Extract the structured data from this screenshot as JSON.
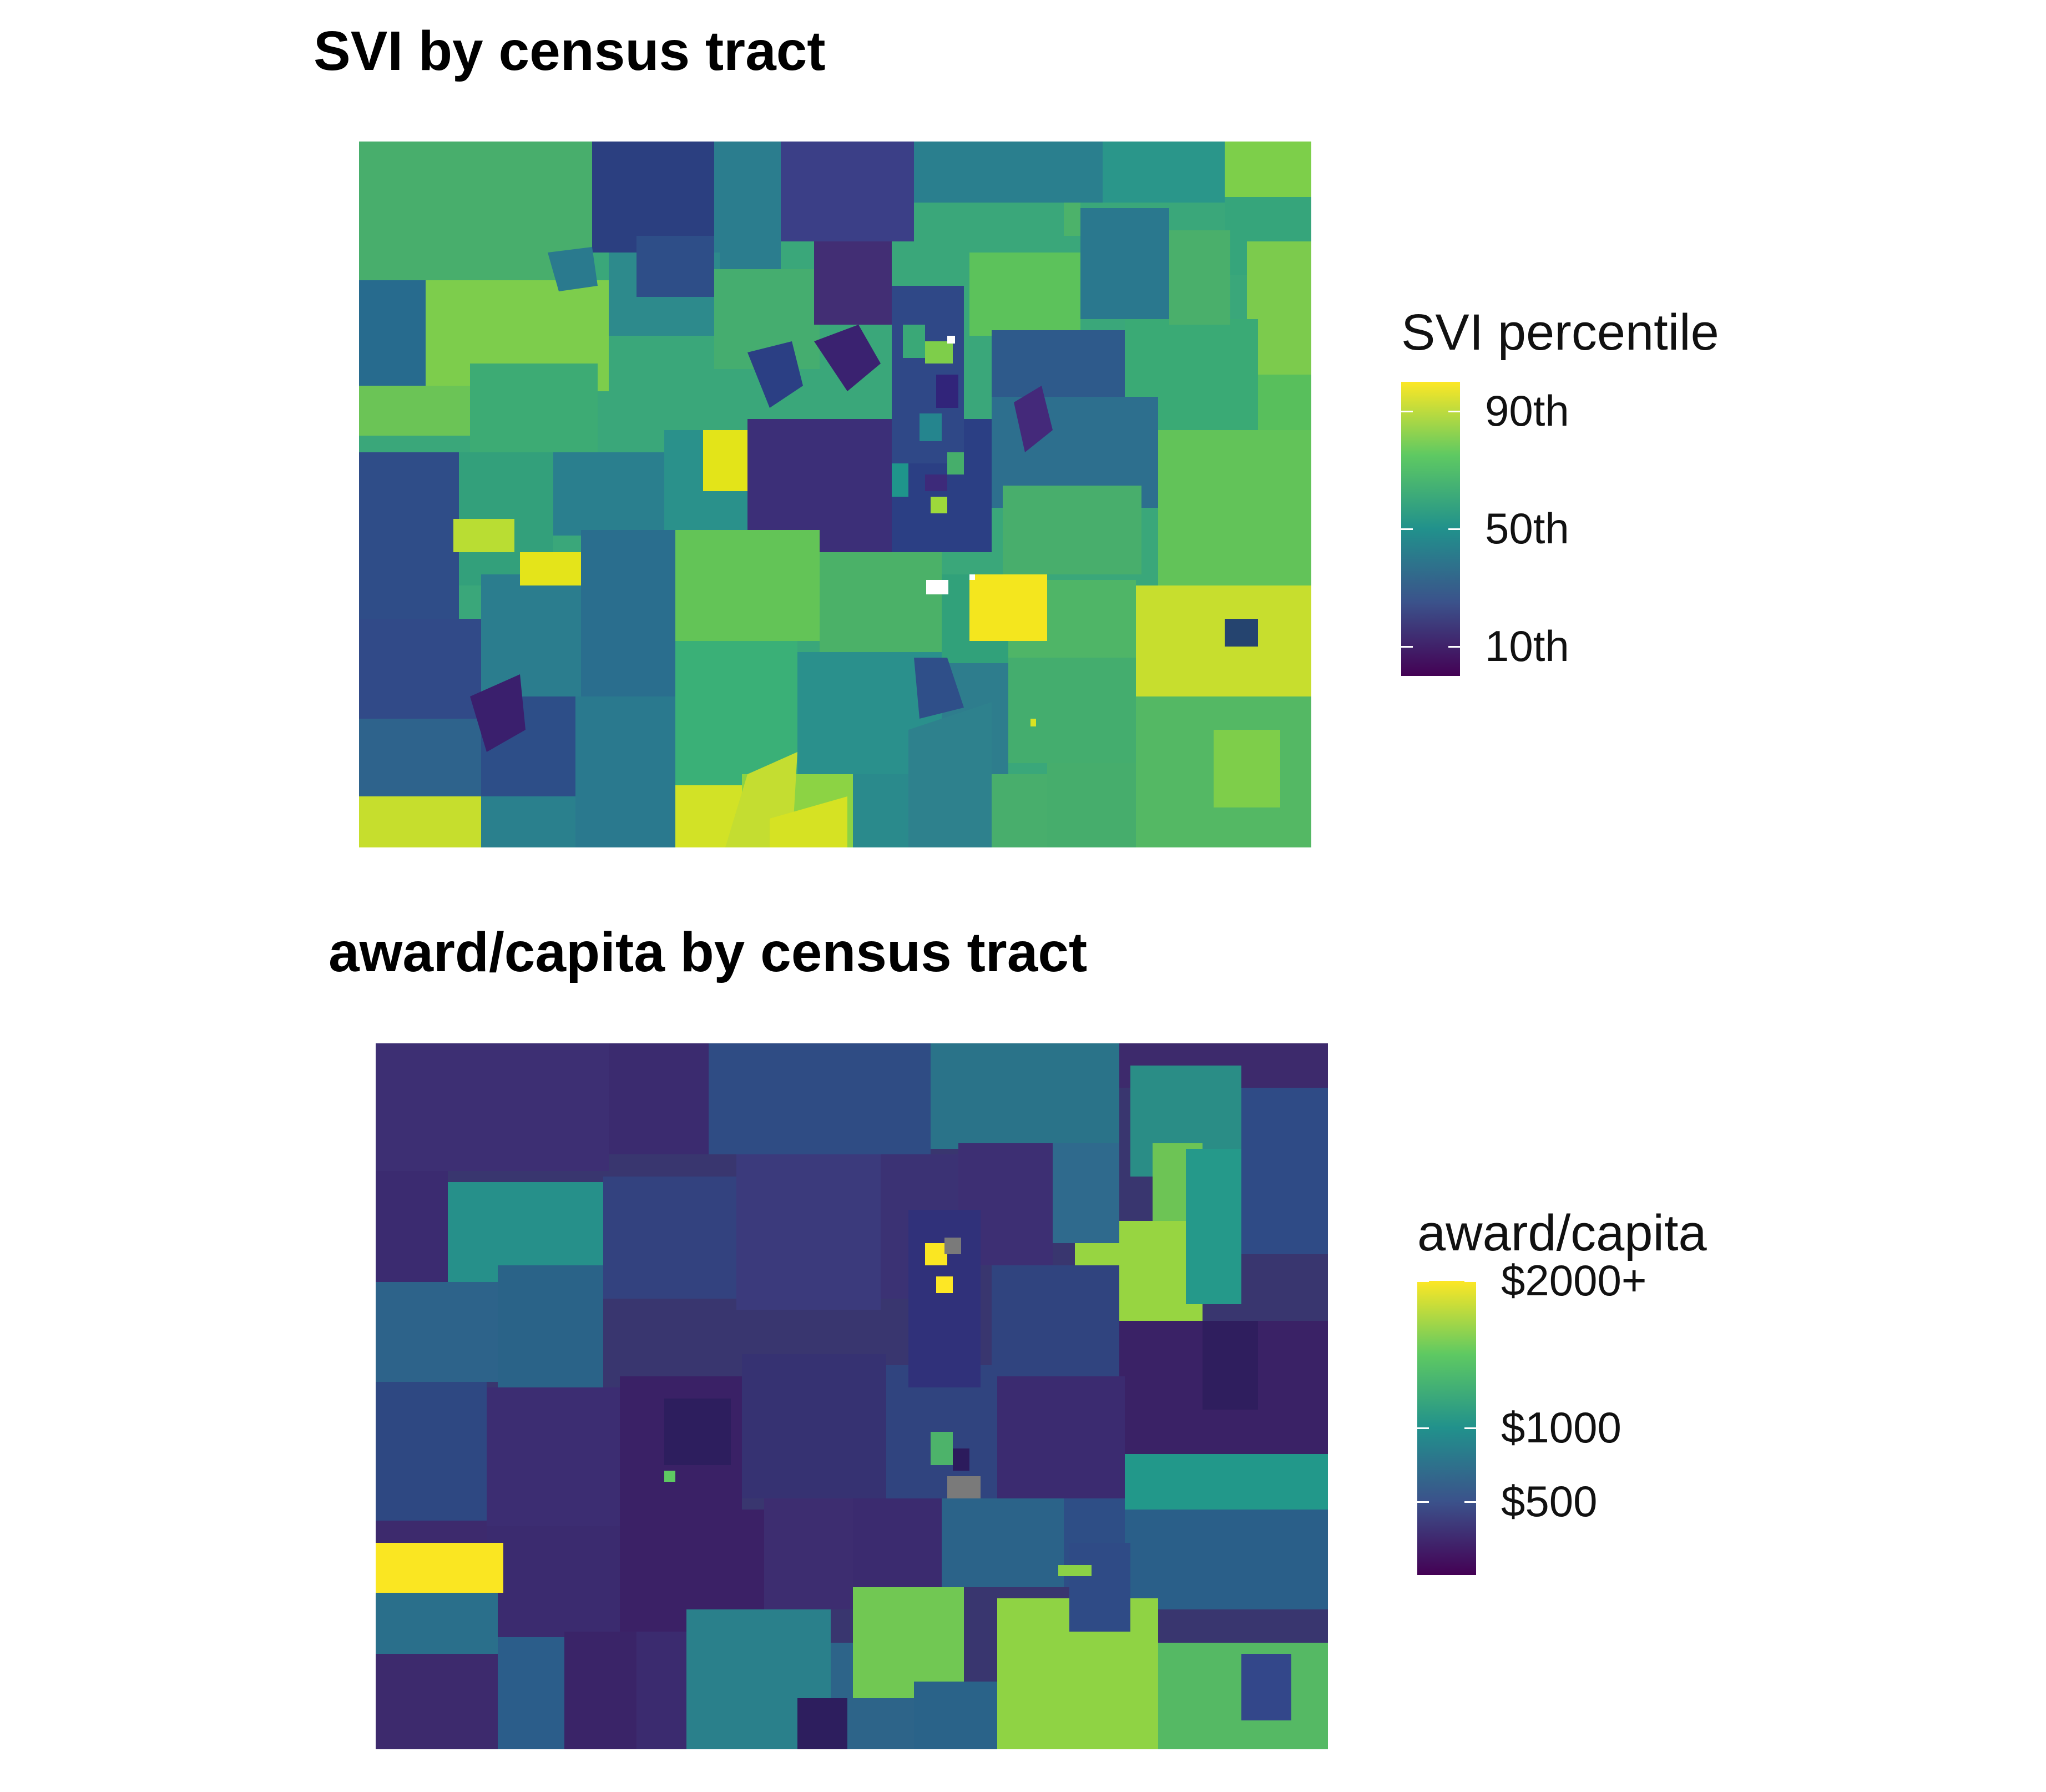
{
  "panels": [
    {
      "title": "SVI by census tract",
      "legend": {
        "title": "SVI percentile",
        "ticks": [
          {
            "label": "90th",
            "value": 90
          },
          {
            "label": "50th",
            "value": 50
          },
          {
            "label": "10th",
            "value": 10
          }
        ],
        "range": [
          0,
          100
        ],
        "colors": [
          "#440154",
          "#3b528b",
          "#21918c",
          "#5ec962",
          "#fde725"
        ]
      }
    },
    {
      "title": "award/capita by census tract",
      "legend": {
        "title": "award/capita",
        "ticks": [
          {
            "label": "$2000+",
            "value": 2000
          },
          {
            "label": "$1000",
            "value": 1000
          },
          {
            "label": "$500",
            "value": 500
          }
        ],
        "range": [
          0,
          2000
        ],
        "colors": [
          "#440154",
          "#3b528b",
          "#21918c",
          "#5ec962",
          "#fde725"
        ]
      }
    }
  ],
  "colors": {
    "viridis_dark": "#440154",
    "viridis_blue": "#3b528b",
    "viridis_teal": "#21918c",
    "viridis_green": "#5ec962",
    "viridis_yellow": "#fde725",
    "missing": "#808080"
  }
}
